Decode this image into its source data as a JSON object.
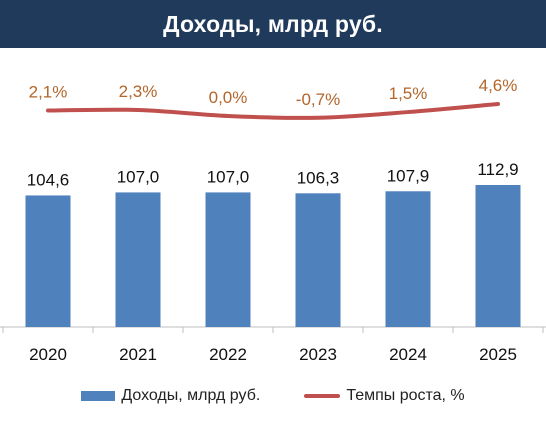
{
  "header": {
    "title": "Доходы, млрд руб."
  },
  "colors": {
    "header_bg": "#1f3a5a",
    "bar": "#4f81bd",
    "line": "#c0504d",
    "rate_label": "#b3652a"
  },
  "chart_data": {
    "type": "bar",
    "categories": [
      "2020",
      "2021",
      "2022",
      "2023",
      "2024",
      "2025"
    ],
    "series": [
      {
        "name": "Доходы, млрд руб.",
        "type": "bar",
        "values": [
          104.6,
          107.0,
          107.0,
          106.3,
          107.9,
          112.9
        ],
        "labels": [
          "104,6",
          "107,0",
          "107,0",
          "106,3",
          "107,9",
          "112,9"
        ]
      },
      {
        "name": "Темпы роста, %",
        "type": "line",
        "values": [
          2.1,
          2.3,
          0.0,
          -0.7,
          1.5,
          4.6
        ],
        "labels": [
          "2,1%",
          "2,3%",
          "0,0%",
          "-0,7%",
          "1,5%",
          "4,6%"
        ]
      }
    ],
    "legend_position": "bottom",
    "grid": false
  }
}
